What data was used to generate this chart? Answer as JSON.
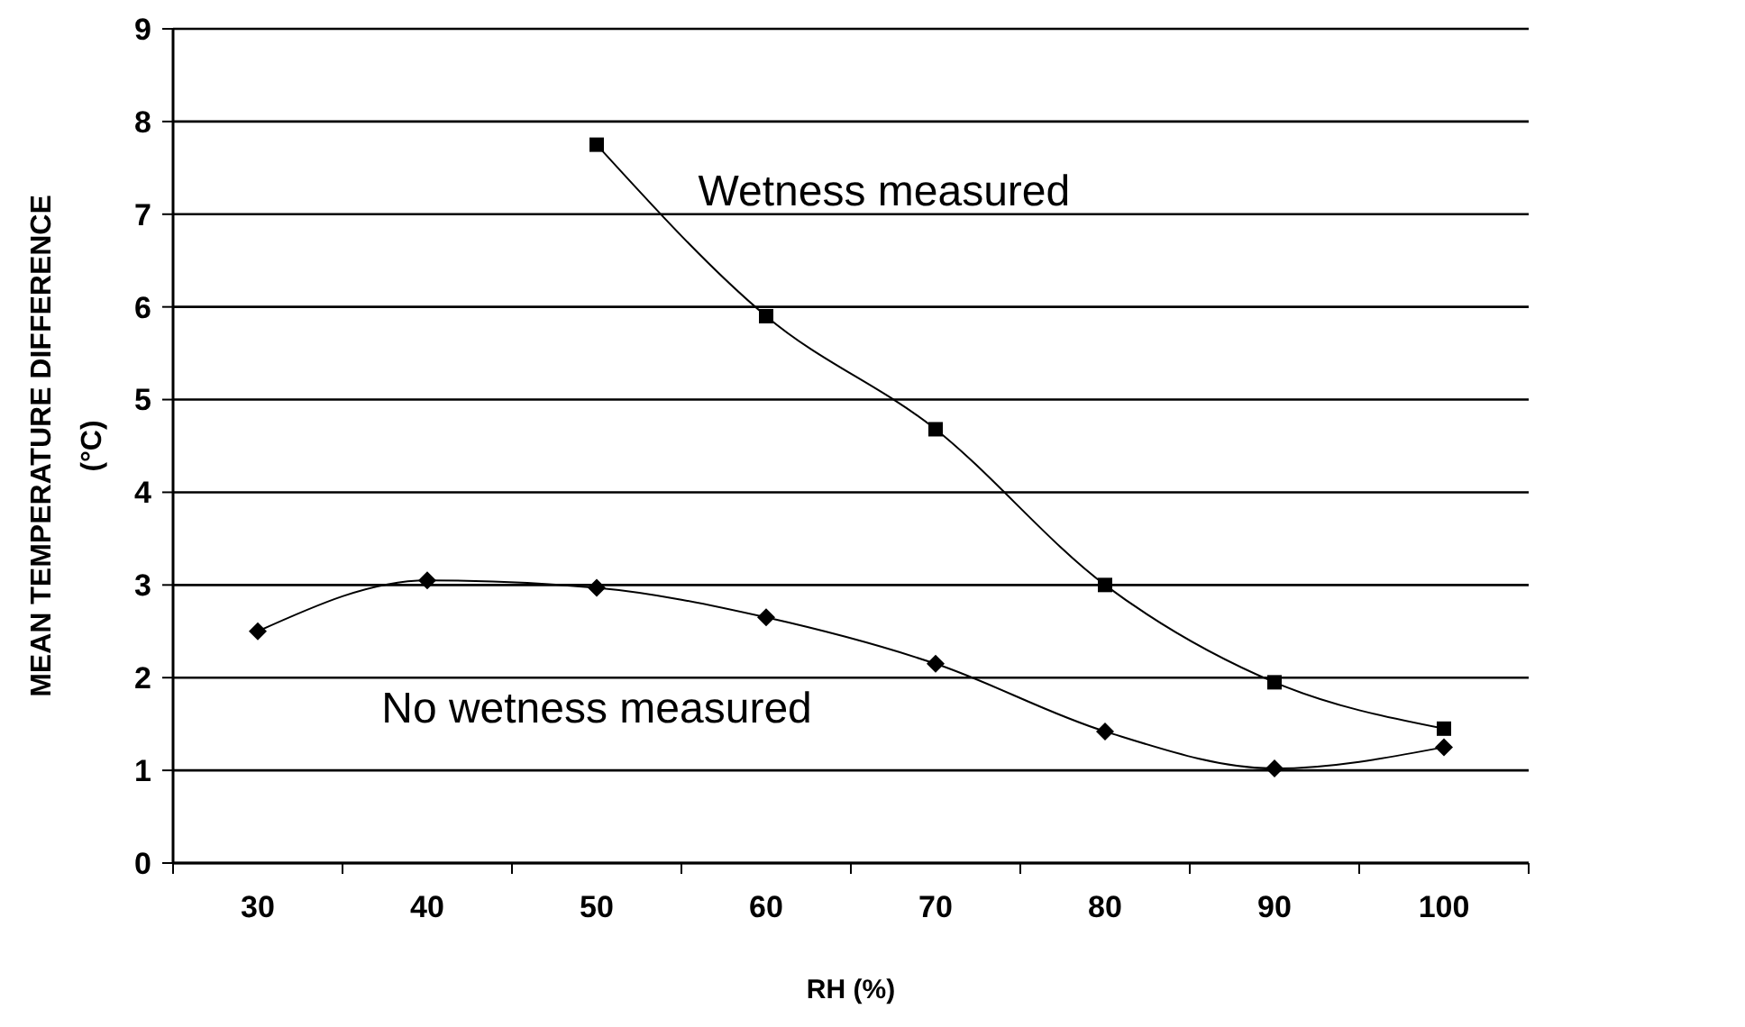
{
  "chart_data": {
    "type": "line",
    "xlabel": "RH (%)",
    "ylabel": "MEAN TEMPERATURE DIFFERENCE\n(°C)",
    "categories": [
      "30",
      "40",
      "50",
      "60",
      "70",
      "80",
      "90",
      "100"
    ],
    "ylim": [
      0,
      9
    ],
    "yticks": [
      0,
      1,
      2,
      3,
      4,
      5,
      6,
      7,
      8,
      9
    ],
    "grid": "y",
    "legend": false,
    "series": [
      {
        "name": "Wetness measured",
        "color": "#000000",
        "marker": "square",
        "values": [
          null,
          null,
          7.75,
          5.9,
          4.68,
          3.0,
          1.95,
          1.45
        ]
      },
      {
        "name": "No wetness measured",
        "color": "#000000",
        "marker": "diamond",
        "values": [
          2.5,
          3.05,
          2.97,
          2.65,
          2.15,
          1.42,
          1.02,
          1.25
        ]
      }
    ]
  }
}
